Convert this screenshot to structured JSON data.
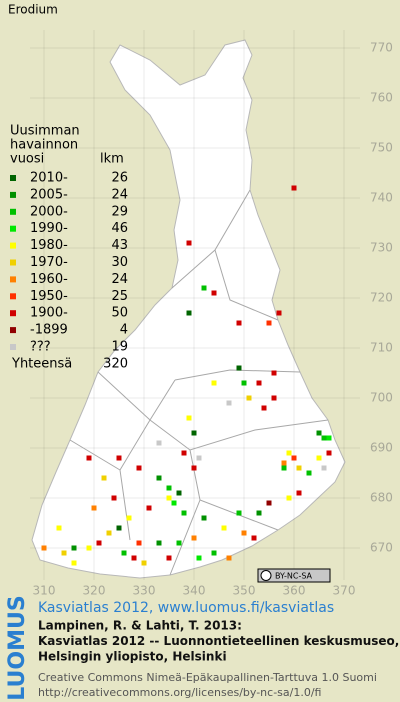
{
  "title": "Erodium",
  "legend": {
    "heading": [
      "Uusimman",
      "havainnon",
      "vuosi"
    ],
    "count_heading": "lkm",
    "entries": [
      {
        "label": "2010-",
        "count": 26,
        "color": "#006400",
        "squares": [
          [
            339,
            717
          ],
          [
            349,
            706
          ],
          [
            337,
            681
          ],
          [
            325,
            674
          ],
          [
            340,
            693
          ]
        ]
      },
      {
        "label": "2005-",
        "count": 24,
        "color": "#009000",
        "squares": [
          [
            365,
            693
          ],
          [
            353,
            677
          ],
          [
            333,
            684
          ],
          [
            316,
            670
          ],
          [
            333,
            671
          ],
          [
            342,
            676
          ]
        ]
      },
      {
        "label": "2000-",
        "count": 29,
        "color": "#00c000",
        "squares": [
          [
            342,
            722
          ],
          [
            350,
            703
          ],
          [
            366,
            692
          ],
          [
            358,
            686
          ],
          [
            363,
            685
          ],
          [
            349,
            677
          ],
          [
            335,
            682
          ],
          [
            338,
            677
          ],
          [
            326,
            669
          ],
          [
            344,
            669
          ],
          [
            337,
            671
          ]
        ]
      },
      {
        "label": "1990-",
        "count": 46,
        "color": "#00e800",
        "squares": [
          [
            367,
            692
          ],
          [
            336,
            679
          ],
          [
            341,
            668
          ]
        ]
      },
      {
        "label": "1980-",
        "count": 43,
        "color": "#ffff00",
        "squares": [
          [
            344,
            703
          ],
          [
            359,
            689
          ],
          [
            365,
            688
          ],
          [
            359,
            680
          ],
          [
            346,
            674
          ],
          [
            327,
            676
          ],
          [
            319,
            670
          ],
          [
            316,
            667
          ],
          [
            313,
            674
          ],
          [
            339,
            696
          ],
          [
            335,
            680
          ]
        ]
      },
      {
        "label": "1970-",
        "count": 30,
        "color": "#f0d000",
        "squares": [
          [
            351,
            700
          ],
          [
            361,
            686
          ],
          [
            323,
            673
          ],
          [
            314,
            669
          ],
          [
            330,
            667
          ],
          [
            322,
            684
          ]
        ]
      },
      {
        "label": "1960-",
        "count": 24,
        "color": "#ff8000",
        "squares": [
          [
            358,
            687
          ],
          [
            350,
            673
          ],
          [
            310,
            670
          ],
          [
            347,
            668
          ],
          [
            320,
            678
          ],
          [
            340,
            672
          ]
        ]
      },
      {
        "label": "1950-",
        "count": 25,
        "color": "#ff3000",
        "squares": [
          [
            355,
            715
          ],
          [
            360,
            688
          ],
          [
            329,
            671
          ]
        ]
      },
      {
        "label": "1900-",
        "count": 50,
        "color": "#d00000",
        "squares": [
          [
            360,
            742
          ],
          [
            339,
            731
          ],
          [
            344,
            721
          ],
          [
            349,
            715
          ],
          [
            357,
            717
          ],
          [
            353,
            703
          ],
          [
            356,
            705
          ],
          [
            356,
            700
          ],
          [
            354,
            698
          ],
          [
            367,
            689
          ],
          [
            361,
            681
          ],
          [
            352,
            672
          ],
          [
            338,
            689
          ],
          [
            340,
            686
          ],
          [
            331,
            678
          ],
          [
            321,
            671
          ],
          [
            328,
            668
          ],
          [
            335,
            668
          ],
          [
            324,
            680
          ],
          [
            329,
            686
          ],
          [
            325,
            688
          ],
          [
            319,
            688
          ]
        ]
      },
      {
        "label": "-1899",
        "count": 4,
        "color": "#900000",
        "squares": [
          [
            355,
            679
          ]
        ]
      },
      {
        "label": "???",
        "count": 19,
        "color": "#c8c8c8",
        "squares": [
          [
            347,
            699
          ],
          [
            366,
            686
          ],
          [
            341,
            688
          ],
          [
            333,
            691
          ]
        ]
      }
    ],
    "total_label": "Yhteensä",
    "total": 320
  },
  "axes": {
    "x_ticks": [
      310,
      320,
      330,
      340,
      350,
      360,
      370
    ],
    "y_ticks": [
      670,
      680,
      690,
      700,
      710,
      720,
      730,
      740,
      750,
      760,
      770
    ]
  },
  "badge": "BY-NC-SA",
  "logo": "LUOMUS",
  "footer": {
    "link": "Kasviatlas 2012, www.luomus.fi/kasviatlas",
    "citation": [
      "Lampinen, R. & Lahti, T. 2013:",
      "Kasviatlas 2012 -- Luonnontieteellinen keskusmuseo,",
      "Helsingin yliopisto, Helsinki"
    ],
    "license": [
      "Creative Commons Nimeä-Epäkaupallinen-Tarttuva 1.0 Suomi",
      "http://creativecommons.org/licenses/by-nc-sa/1.0/fi"
    ]
  }
}
